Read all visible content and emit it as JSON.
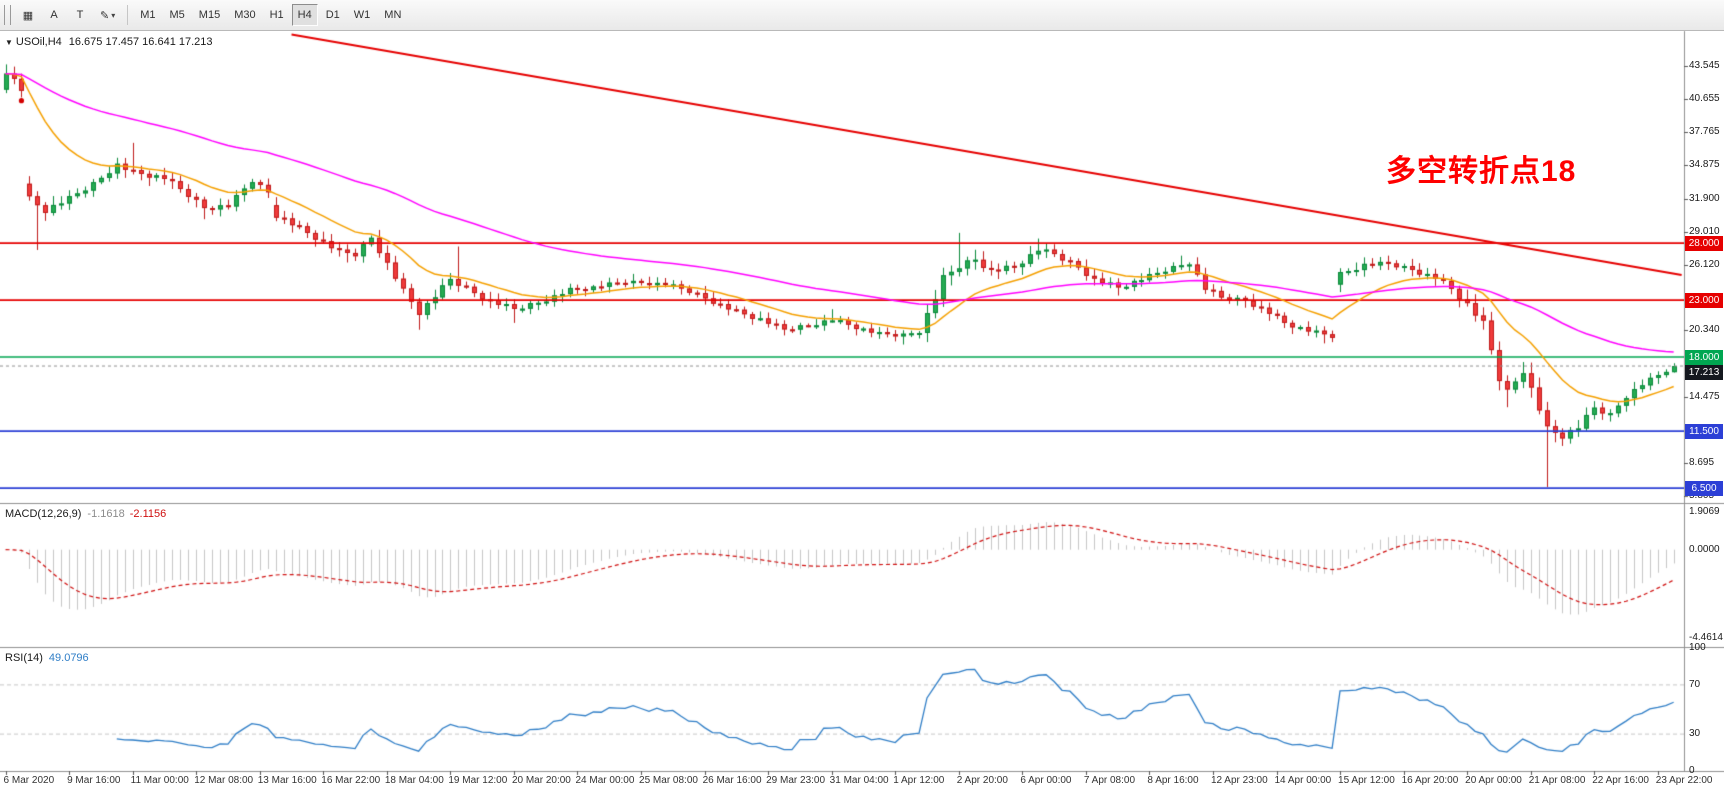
{
  "toolbar": {
    "icons": {
      "grid": "▦",
      "pointer": "A",
      "text": "T",
      "pen": "✎",
      "caret": "▾"
    },
    "timeframes": [
      "M1",
      "M5",
      "M15",
      "M30",
      "H1",
      "H4",
      "D1",
      "W1",
      "MN"
    ],
    "active_timeframe": "H4"
  },
  "chart_data": {
    "type": "candlestick",
    "title_icon": "▼",
    "title": "USOil,H4",
    "ohlc_display": "16.675 17.457 16.641 17.213",
    "annotation": {
      "text": "多空转折点18",
      "color": "#ff0000"
    },
    "n_bars": 211,
    "up_color": "#25ab52",
    "down_color": "#ef3b3b",
    "price_axis_ticks": [
      {
        "p": 43.545,
        "t": "43.545"
      },
      {
        "p": 40.655,
        "t": "40.655"
      },
      {
        "p": 37.765,
        "t": "37.765"
      },
      {
        "p": 34.875,
        "t": "34.875"
      },
      {
        "p": 31.9,
        "t": "31.900"
      },
      {
        "p": 29.01,
        "t": "29.010"
      },
      {
        "p": 26.12,
        "t": "26.120"
      },
      {
        "p": 20.34,
        "t": "20.340"
      },
      {
        "p": 14.475,
        "t": "14.475"
      },
      {
        "p": 8.695,
        "t": "8.695"
      },
      {
        "p": 5.805,
        "t": "5.805"
      }
    ],
    "time_axis_labels": [
      "6 Mar 2020",
      "9 Mar 16:00",
      "11 Mar 00:00",
      "12 Mar 08:00",
      "13 Mar 16:00",
      "16 Mar 22:00",
      "18 Mar 04:00",
      "19 Mar 12:00",
      "20 Mar 20:00",
      "24 Mar 00:00",
      "25 Mar 08:00",
      "26 Mar 16:00",
      "29 Mar 23:00",
      "31 Mar 04:00",
      "1 Apr 12:00",
      "2 Apr 20:00",
      "6 Apr 00:00",
      "7 Apr 08:00",
      "8 Apr 16:00",
      "12 Apr 23:00",
      "14 Apr 00:00",
      "15 Apr 12:00",
      "16 Apr 20:00",
      "20 Apr 00:00",
      "21 Apr 08:00",
      "22 Apr 16:00",
      "23 Apr 22:00"
    ],
    "bars_per_label": 8,
    "close_anchors": [
      [
        0,
        43.2,
        1.2
      ],
      [
        2,
        41.5,
        0.9
      ],
      [
        3,
        31.8,
        1.6,
        1
      ],
      [
        5,
        30.9,
        1.1
      ],
      [
        8,
        31.9,
        0.9
      ],
      [
        11,
        33.2,
        0.9
      ],
      [
        14,
        34.9,
        0.8
      ],
      [
        16,
        34.2,
        1.0
      ],
      [
        20,
        33.7,
        0.9
      ],
      [
        23,
        32.2,
        0.9
      ],
      [
        25,
        31.1,
        0.9
      ],
      [
        28,
        31.3,
        0.8
      ],
      [
        31,
        33.5,
        0.8
      ],
      [
        33,
        32.5,
        0.7
      ],
      [
        34,
        30.5,
        1.0,
        1
      ],
      [
        37,
        29.3,
        0.9
      ],
      [
        39,
        28.5,
        0.9
      ],
      [
        42,
        27.2,
        0.9
      ],
      [
        44,
        27.0,
        0.9
      ],
      [
        46,
        28.5,
        0.8
      ],
      [
        48,
        26.2,
        1.0
      ],
      [
        50,
        23.8,
        1.0
      ],
      [
        52,
        21.9,
        1.0
      ],
      [
        54,
        23.3,
        0.9
      ],
      [
        56,
        24.8,
        0.9
      ],
      [
        58,
        24.0,
        0.9
      ],
      [
        61,
        22.9,
        0.9
      ],
      [
        64,
        22.2,
        0.9
      ],
      [
        67,
        22.8,
        0.8
      ],
      [
        71,
        23.9,
        0.8
      ],
      [
        74,
        24.1,
        0.7
      ],
      [
        78,
        24.6,
        0.7
      ],
      [
        83,
        24.4,
        0.7
      ],
      [
        86,
        23.8,
        0.8
      ],
      [
        89,
        22.9,
        0.8
      ],
      [
        92,
        22.0,
        0.8
      ],
      [
        95,
        21.3,
        0.8
      ],
      [
        98,
        20.4,
        0.7
      ],
      [
        101,
        20.8,
        0.7
      ],
      [
        104,
        21.3,
        0.8
      ],
      [
        107,
        20.6,
        0.7
      ],
      [
        110,
        20.0,
        0.7
      ],
      [
        113,
        19.9,
        0.8
      ],
      [
        115,
        20.3,
        0.8
      ],
      [
        117,
        23.2,
        1.3
      ],
      [
        118,
        24.9,
        1.2
      ],
      [
        120,
        26.0,
        1.2
      ],
      [
        122,
        26.6,
        1.1
      ],
      [
        124,
        25.6,
        1.0
      ],
      [
        127,
        25.9,
        1.0
      ],
      [
        130,
        27.4,
        0.9
      ],
      [
        132,
        27.0,
        0.9
      ],
      [
        135,
        25.9,
        0.9
      ],
      [
        137,
        24.8,
        0.9
      ],
      [
        140,
        24.1,
        0.9
      ],
      [
        143,
        24.8,
        0.8
      ],
      [
        146,
        25.6,
        0.8
      ],
      [
        149,
        26.3,
        0.8
      ],
      [
        151,
        24.0,
        0.9
      ],
      [
        153,
        23.2,
        0.8
      ],
      [
        156,
        23.0,
        0.8
      ],
      [
        159,
        21.9,
        0.8
      ],
      [
        161,
        21.0,
        0.8
      ],
      [
        164,
        20.3,
        0.7
      ],
      [
        167,
        19.8,
        0.7
      ],
      [
        168,
        25.3,
        0.9,
        1
      ],
      [
        171,
        26.1,
        0.8
      ],
      [
        174,
        26.2,
        0.8
      ],
      [
        177,
        25.7,
        0.8
      ],
      [
        180,
        25.0,
        0.9
      ],
      [
        182,
        24.0,
        1.0
      ],
      [
        184,
        22.6,
        1.1
      ],
      [
        186,
        20.9,
        1.2
      ],
      [
        188,
        16.2,
        1.8
      ],
      [
        189,
        14.9,
        1.5
      ],
      [
        191,
        16.9,
        1.3
      ],
      [
        193,
        13.5,
        1.5
      ],
      [
        194,
        11.6,
        1.5
      ],
      [
        196,
        11.1,
        1.2
      ],
      [
        198,
        11.8,
        1.0
      ],
      [
        200,
        13.5,
        1.0
      ],
      [
        202,
        12.9,
        0.9
      ],
      [
        204,
        14.6,
        0.9
      ],
      [
        206,
        15.6,
        0.8
      ],
      [
        208,
        16.4,
        0.7
      ],
      [
        210,
        17.213,
        0.5
      ]
    ],
    "wick_spikes": [
      {
        "b": 4,
        "l": 27.4
      },
      {
        "b": 16,
        "h": 36.8
      },
      {
        "b": 25,
        "l": 30.1
      },
      {
        "b": 43,
        "l": 26.3
      },
      {
        "b": 52,
        "l": 20.4
      },
      {
        "b": 57,
        "h": 27.7
      },
      {
        "b": 64,
        "l": 21.0
      },
      {
        "b": 79,
        "h": 25.3
      },
      {
        "b": 98,
        "l": 19.9
      },
      {
        "b": 104,
        "h": 22.2
      },
      {
        "b": 113,
        "l": 19.1
      },
      {
        "b": 120,
        "h": 28.9
      },
      {
        "b": 130,
        "h": 28.4
      },
      {
        "b": 140,
        "l": 23.4
      },
      {
        "b": 148,
        "h": 26.9
      },
      {
        "b": 166,
        "l": 19.2
      },
      {
        "b": 174,
        "h": 26.9
      },
      {
        "b": 189,
        "l": 13.6
      },
      {
        "b": 194,
        "l": 6.6
      },
      {
        "b": 196,
        "l": 10.2
      }
    ],
    "last_candle": {
      "o": 16.675,
      "h": 17.457,
      "l": 16.641,
      "c": 17.213
    },
    "horizontal_lines": [
      {
        "price": 28.0,
        "label": "28.000",
        "color": "#e60000"
      },
      {
        "price": 23.0,
        "label": "23.000",
        "color": "#e60000"
      },
      {
        "price": 18.0,
        "label": "18.000",
        "color": "#00a651"
      },
      {
        "price": 11.5,
        "label": "11.500",
        "color": "#2c3fd6"
      },
      {
        "price": 6.5,
        "label": "6.500",
        "color": "#2c3fd6"
      }
    ],
    "bid": {
      "price": 17.213,
      "label": "17.213",
      "tag_color": "#14181f"
    },
    "trendline": {
      "b1": 36,
      "p1": 46.3,
      "b2": 211,
      "p2": 25.2,
      "color": "#e60000"
    },
    "moving_averages": [
      {
        "period": 14,
        "color": "#f5a000"
      },
      {
        "period": 55,
        "color": "#ff00ff"
      }
    ],
    "marker": {
      "bar": 2,
      "price": 40.5,
      "color": "#d40000"
    },
    "macd": {
      "title": "MACD(12,26,9)",
      "v1": "-1.1618",
      "v2": "-2.1156",
      "range": [
        -4.4614,
        1.9069
      ],
      "ticks": [
        {
          "v": 1.9069,
          "t": "1.9069"
        },
        {
          "v": 0,
          "t": "0.0000"
        },
        {
          "v": -4.4614,
          "t": "-4.4614"
        }
      ],
      "hist_color": "#c6c6c6",
      "signal_color": "#d01010"
    },
    "rsi": {
      "title": "RSI(14)",
      "value": "49.0796",
      "color": "#2f7ec7",
      "levels": [
        30,
        70
      ],
      "ticks": [
        {
          "v": 100,
          "t": "100"
        },
        {
          "v": 70,
          "t": "70"
        },
        {
          "v": 30,
          "t": "30"
        },
        {
          "v": 0,
          "t": "0"
        }
      ]
    }
  }
}
